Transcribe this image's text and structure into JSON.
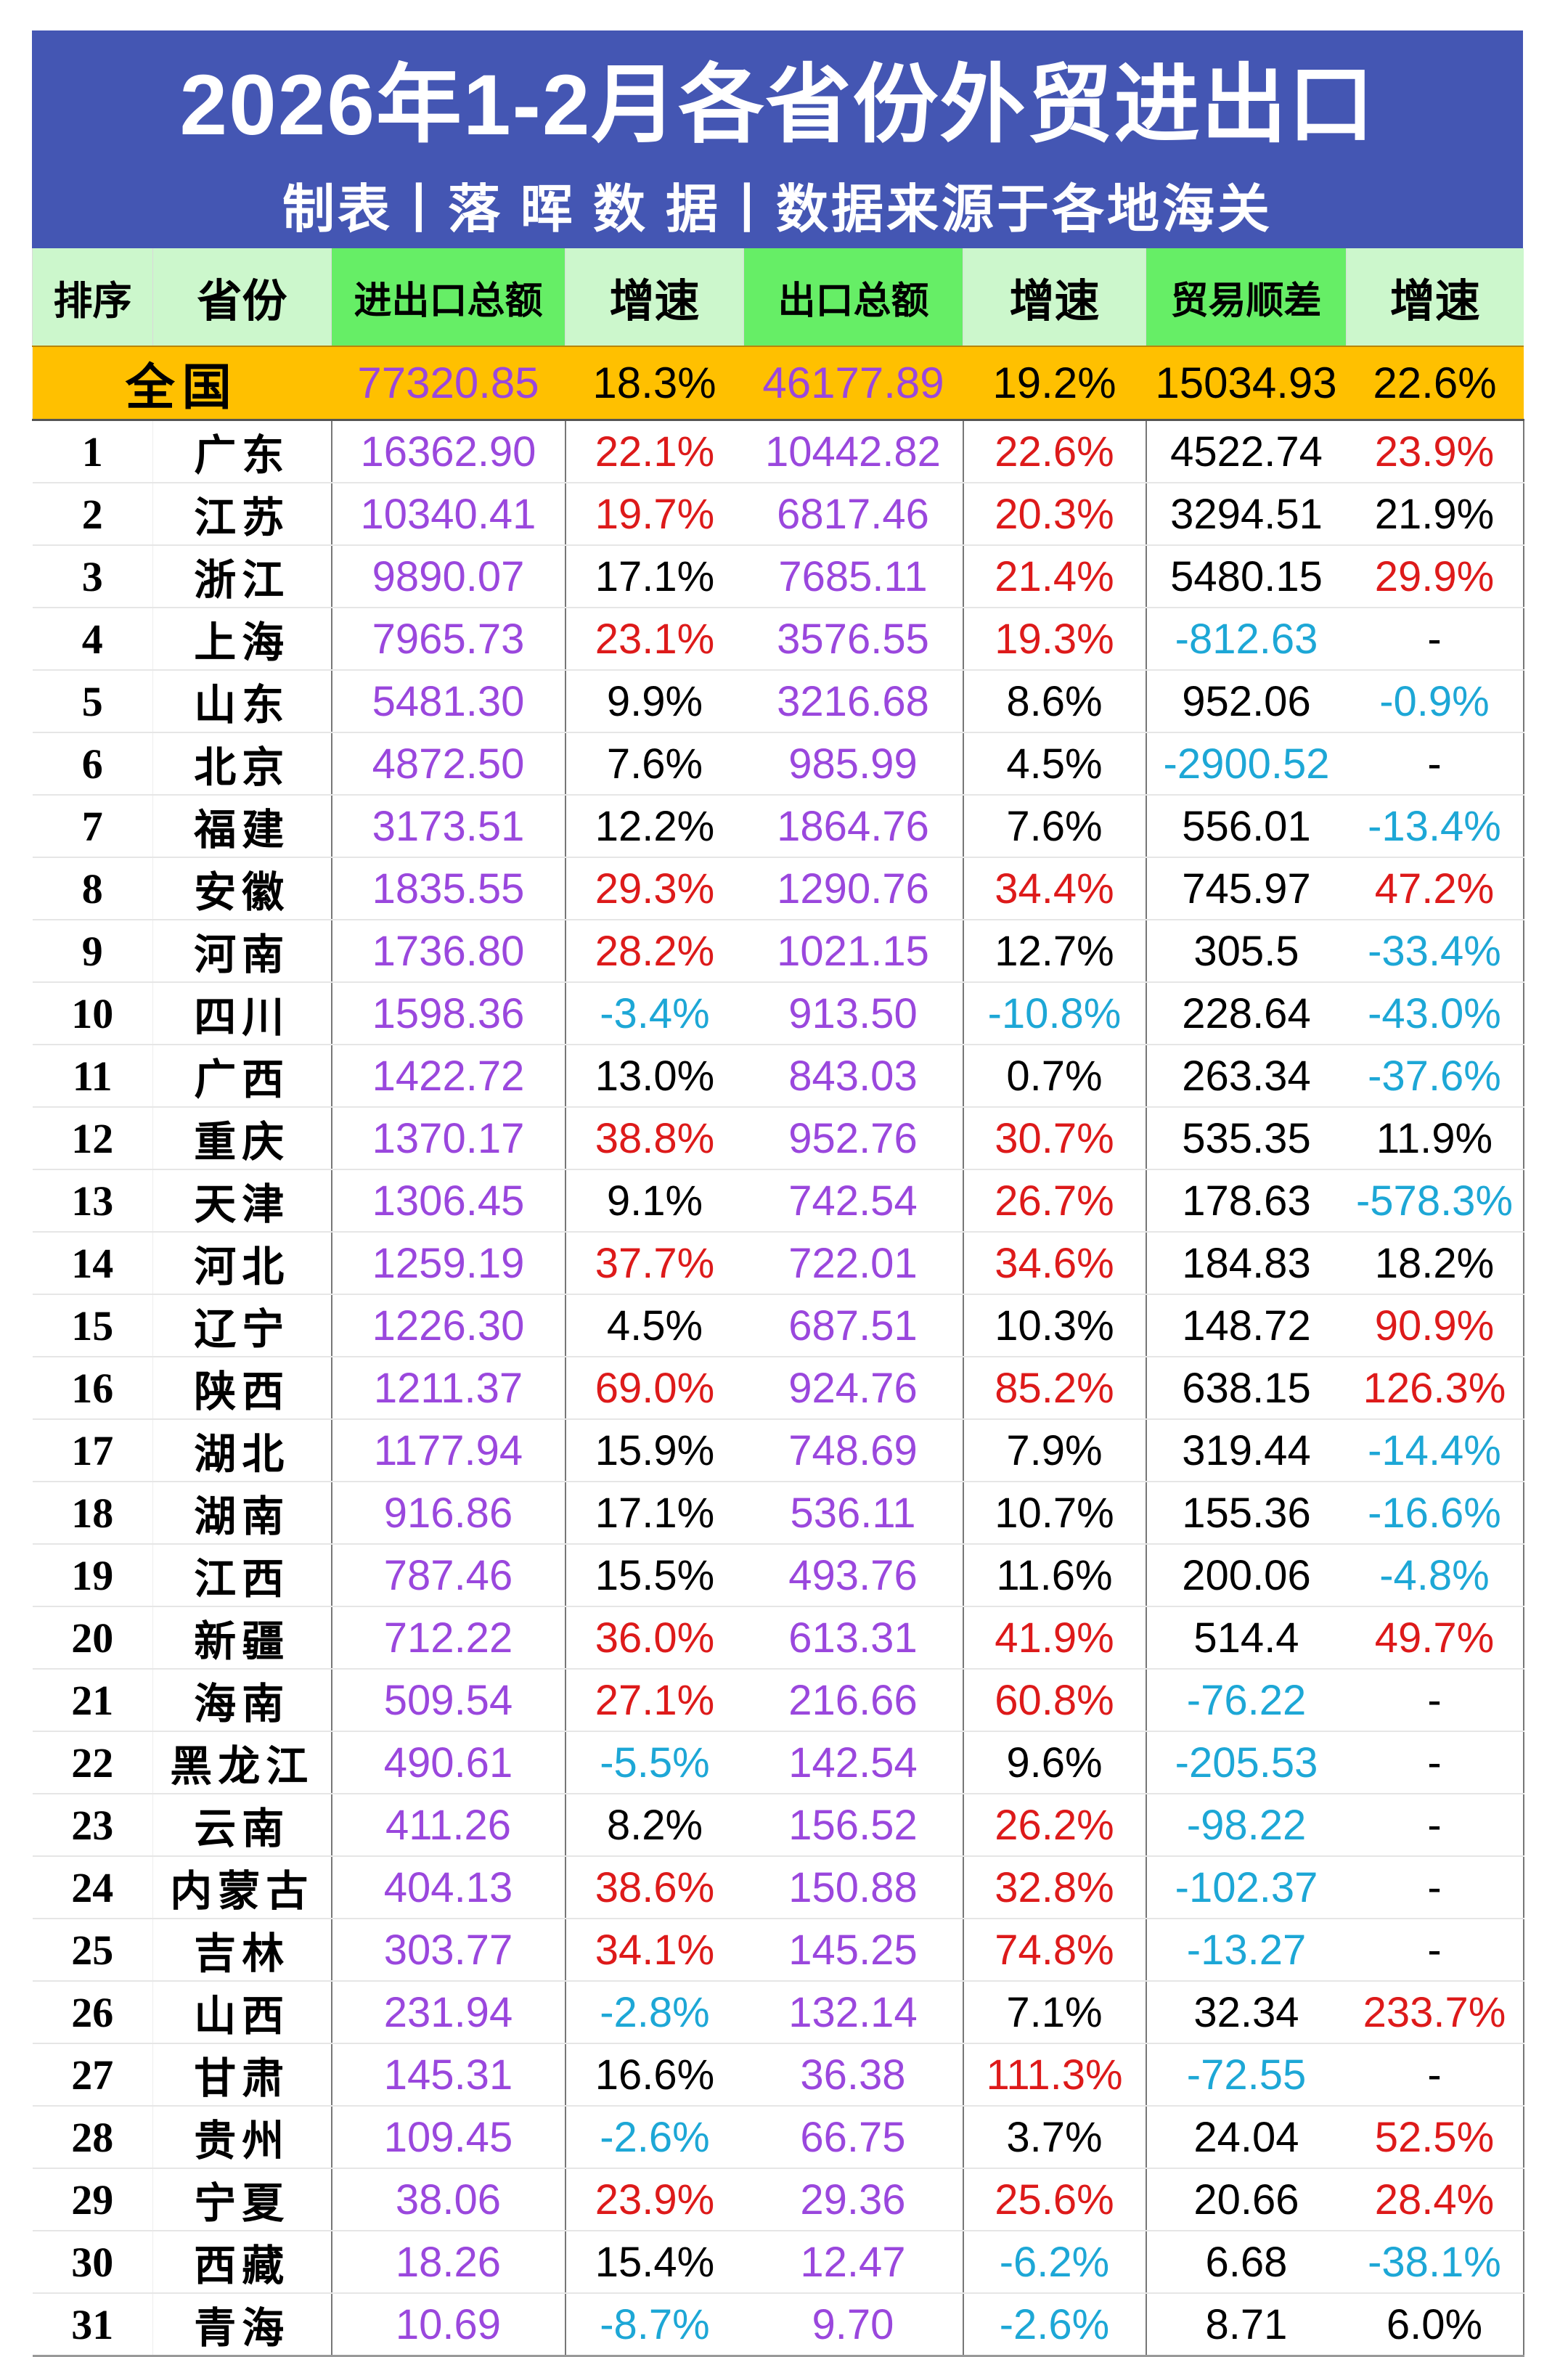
{
  "title": "2026年1-2月各省份外贸进出口",
  "subtitle": "制表丨落 晖 数 据丨数据来源于各地海关",
  "colors": {
    "banner": "#4456b3",
    "header_light": "#ccf7cc",
    "header_green": "#66ee66",
    "national_row": "#ffc000",
    "amount": "#9a47dd",
    "positive_high": "#dd1a1a",
    "negative": "#1da7d6"
  },
  "headers": [
    "排序",
    "省份",
    "进出口总额",
    "增速",
    "出口总额",
    "增速",
    "贸易顺差",
    "增速"
  ],
  "national": {
    "name": "全国",
    "total": "77320.85",
    "total_growth": "18.3%",
    "export": "46177.89",
    "export_growth": "19.2%",
    "surplus": "15034.93",
    "surplus_growth": "22.6%"
  },
  "rows": [
    {
      "rank": "1",
      "name": "广东",
      "total": "16362.90",
      "tg": "22.1%",
      "tgc": "red",
      "export": "10442.82",
      "eg": "22.6%",
      "egc": "red",
      "surplus": "4522.74",
      "sc": "black",
      "sg": "23.9%",
      "sgc": "red"
    },
    {
      "rank": "2",
      "name": "江苏",
      "total": "10340.41",
      "tg": "19.7%",
      "tgc": "red",
      "export": "6817.46",
      "eg": "20.3%",
      "egc": "red",
      "surplus": "3294.51",
      "sc": "black",
      "sg": "21.9%",
      "sgc": "black"
    },
    {
      "rank": "3",
      "name": "浙江",
      "total": "9890.07",
      "tg": "17.1%",
      "tgc": "black",
      "export": "7685.11",
      "eg": "21.4%",
      "egc": "red",
      "surplus": "5480.15",
      "sc": "black",
      "sg": "29.9%",
      "sgc": "red"
    },
    {
      "rank": "4",
      "name": "上海",
      "total": "7965.73",
      "tg": "23.1%",
      "tgc": "red",
      "export": "3576.55",
      "eg": "19.3%",
      "egc": "red",
      "surplus": "-812.63",
      "sc": "blue",
      "sg": "-",
      "sgc": "black"
    },
    {
      "rank": "5",
      "name": "山东",
      "total": "5481.30",
      "tg": "9.9%",
      "tgc": "black",
      "export": "3216.68",
      "eg": "8.6%",
      "egc": "black",
      "surplus": "952.06",
      "sc": "black",
      "sg": "-0.9%",
      "sgc": "blue"
    },
    {
      "rank": "6",
      "name": "北京",
      "total": "4872.50",
      "tg": "7.6%",
      "tgc": "black",
      "export": "985.99",
      "eg": "4.5%",
      "egc": "black",
      "surplus": "-2900.52",
      "sc": "blue",
      "sg": "-",
      "sgc": "black"
    },
    {
      "rank": "7",
      "name": "福建",
      "total": "3173.51",
      "tg": "12.2%",
      "tgc": "black",
      "export": "1864.76",
      "eg": "7.6%",
      "egc": "black",
      "surplus": "556.01",
      "sc": "black",
      "sg": "-13.4%",
      "sgc": "blue"
    },
    {
      "rank": "8",
      "name": "安徽",
      "total": "1835.55",
      "tg": "29.3%",
      "tgc": "red",
      "export": "1290.76",
      "eg": "34.4%",
      "egc": "red",
      "surplus": "745.97",
      "sc": "black",
      "sg": "47.2%",
      "sgc": "red"
    },
    {
      "rank": "9",
      "name": "河南",
      "total": "1736.80",
      "tg": "28.2%",
      "tgc": "red",
      "export": "1021.15",
      "eg": "12.7%",
      "egc": "black",
      "surplus": "305.5",
      "sc": "black",
      "sg": "-33.4%",
      "sgc": "blue"
    },
    {
      "rank": "10",
      "name": "四川",
      "total": "1598.36",
      "tg": "-3.4%",
      "tgc": "blue",
      "export": "913.50",
      "eg": "-10.8%",
      "egc": "blue",
      "surplus": "228.64",
      "sc": "black",
      "sg": "-43.0%",
      "sgc": "blue"
    },
    {
      "rank": "11",
      "name": "广西",
      "total": "1422.72",
      "tg": "13.0%",
      "tgc": "black",
      "export": "843.03",
      "eg": "0.7%",
      "egc": "black",
      "surplus": "263.34",
      "sc": "black",
      "sg": "-37.6%",
      "sgc": "blue"
    },
    {
      "rank": "12",
      "name": "重庆",
      "total": "1370.17",
      "tg": "38.8%",
      "tgc": "red",
      "export": "952.76",
      "eg": "30.7%",
      "egc": "red",
      "surplus": "535.35",
      "sc": "black",
      "sg": "11.9%",
      "sgc": "black"
    },
    {
      "rank": "13",
      "name": "天津",
      "total": "1306.45",
      "tg": "9.1%",
      "tgc": "black",
      "export": "742.54",
      "eg": "26.7%",
      "egc": "red",
      "surplus": "178.63",
      "sc": "black",
      "sg": "-578.3%",
      "sgc": "blue"
    },
    {
      "rank": "14",
      "name": "河北",
      "total": "1259.19",
      "tg": "37.7%",
      "tgc": "red",
      "export": "722.01",
      "eg": "34.6%",
      "egc": "red",
      "surplus": "184.83",
      "sc": "black",
      "sg": "18.2%",
      "sgc": "black"
    },
    {
      "rank": "15",
      "name": "辽宁",
      "total": "1226.30",
      "tg": "4.5%",
      "tgc": "black",
      "export": "687.51",
      "eg": "10.3%",
      "egc": "black",
      "surplus": "148.72",
      "sc": "black",
      "sg": "90.9%",
      "sgc": "red"
    },
    {
      "rank": "16",
      "name": "陕西",
      "total": "1211.37",
      "tg": "69.0%",
      "tgc": "red",
      "export": "924.76",
      "eg": "85.2%",
      "egc": "red",
      "surplus": "638.15",
      "sc": "black",
      "sg": "126.3%",
      "sgc": "red"
    },
    {
      "rank": "17",
      "name": "湖北",
      "total": "1177.94",
      "tg": "15.9%",
      "tgc": "black",
      "export": "748.69",
      "eg": "7.9%",
      "egc": "black",
      "surplus": "319.44",
      "sc": "black",
      "sg": "-14.4%",
      "sgc": "blue"
    },
    {
      "rank": "18",
      "name": "湖南",
      "total": "916.86",
      "tg": "17.1%",
      "tgc": "black",
      "export": "536.11",
      "eg": "10.7%",
      "egc": "black",
      "surplus": "155.36",
      "sc": "black",
      "sg": "-16.6%",
      "sgc": "blue"
    },
    {
      "rank": "19",
      "name": "江西",
      "total": "787.46",
      "tg": "15.5%",
      "tgc": "black",
      "export": "493.76",
      "eg": "11.6%",
      "egc": "black",
      "surplus": "200.06",
      "sc": "black",
      "sg": "-4.8%",
      "sgc": "blue"
    },
    {
      "rank": "20",
      "name": "新疆",
      "total": "712.22",
      "tg": "36.0%",
      "tgc": "red",
      "export": "613.31",
      "eg": "41.9%",
      "egc": "red",
      "surplus": "514.4",
      "sc": "black",
      "sg": "49.7%",
      "sgc": "red"
    },
    {
      "rank": "21",
      "name": "海南",
      "total": "509.54",
      "tg": "27.1%",
      "tgc": "red",
      "export": "216.66",
      "eg": "60.8%",
      "egc": "red",
      "surplus": "-76.22",
      "sc": "blue",
      "sg": "-",
      "sgc": "black"
    },
    {
      "rank": "22",
      "name": "黑龙江",
      "total": "490.61",
      "tg": "-5.5%",
      "tgc": "blue",
      "export": "142.54",
      "eg": "9.6%",
      "egc": "black",
      "surplus": "-205.53",
      "sc": "blue",
      "sg": "-",
      "sgc": "black"
    },
    {
      "rank": "23",
      "name": "云南",
      "total": "411.26",
      "tg": "8.2%",
      "tgc": "black",
      "export": "156.52",
      "eg": "26.2%",
      "egc": "red",
      "surplus": "-98.22",
      "sc": "blue",
      "sg": "-",
      "sgc": "black"
    },
    {
      "rank": "24",
      "name": "内蒙古",
      "total": "404.13",
      "tg": "38.6%",
      "tgc": "red",
      "export": "150.88",
      "eg": "32.8%",
      "egc": "red",
      "surplus": "-102.37",
      "sc": "blue",
      "sg": "-",
      "sgc": "black"
    },
    {
      "rank": "25",
      "name": "吉林",
      "total": "303.77",
      "tg": "34.1%",
      "tgc": "red",
      "export": "145.25",
      "eg": "74.8%",
      "egc": "red",
      "surplus": "-13.27",
      "sc": "blue",
      "sg": "-",
      "sgc": "black"
    },
    {
      "rank": "26",
      "name": "山西",
      "total": "231.94",
      "tg": "-2.8%",
      "tgc": "blue",
      "export": "132.14",
      "eg": "7.1%",
      "egc": "black",
      "surplus": "32.34",
      "sc": "black",
      "sg": "233.7%",
      "sgc": "red"
    },
    {
      "rank": "27",
      "name": "甘肃",
      "total": "145.31",
      "tg": "16.6%",
      "tgc": "black",
      "export": "36.38",
      "eg": "111.3%",
      "egc": "red",
      "surplus": "-72.55",
      "sc": "blue",
      "sg": "-",
      "sgc": "black"
    },
    {
      "rank": "28",
      "name": "贵州",
      "total": "109.45",
      "tg": "-2.6%",
      "tgc": "blue",
      "export": "66.75",
      "eg": "3.7%",
      "egc": "black",
      "surplus": "24.04",
      "sc": "black",
      "sg": "52.5%",
      "sgc": "red"
    },
    {
      "rank": "29",
      "name": "宁夏",
      "total": "38.06",
      "tg": "23.9%",
      "tgc": "red",
      "export": "29.36",
      "eg": "25.6%",
      "egc": "red",
      "surplus": "20.66",
      "sc": "black",
      "sg": "28.4%",
      "sgc": "red"
    },
    {
      "rank": "30",
      "name": "西藏",
      "total": "18.26",
      "tg": "15.4%",
      "tgc": "black",
      "export": "12.47",
      "eg": "-6.2%",
      "egc": "blue",
      "surplus": "6.68",
      "sc": "black",
      "sg": "-38.1%",
      "sgc": "blue"
    },
    {
      "rank": "31",
      "name": "青海",
      "total": "10.69",
      "tg": "-8.7%",
      "tgc": "blue",
      "export": "9.70",
      "eg": "-2.6%",
      "egc": "blue",
      "surplus": "8.71",
      "sc": "black",
      "sg": "6.0%",
      "sgc": "black"
    }
  ]
}
